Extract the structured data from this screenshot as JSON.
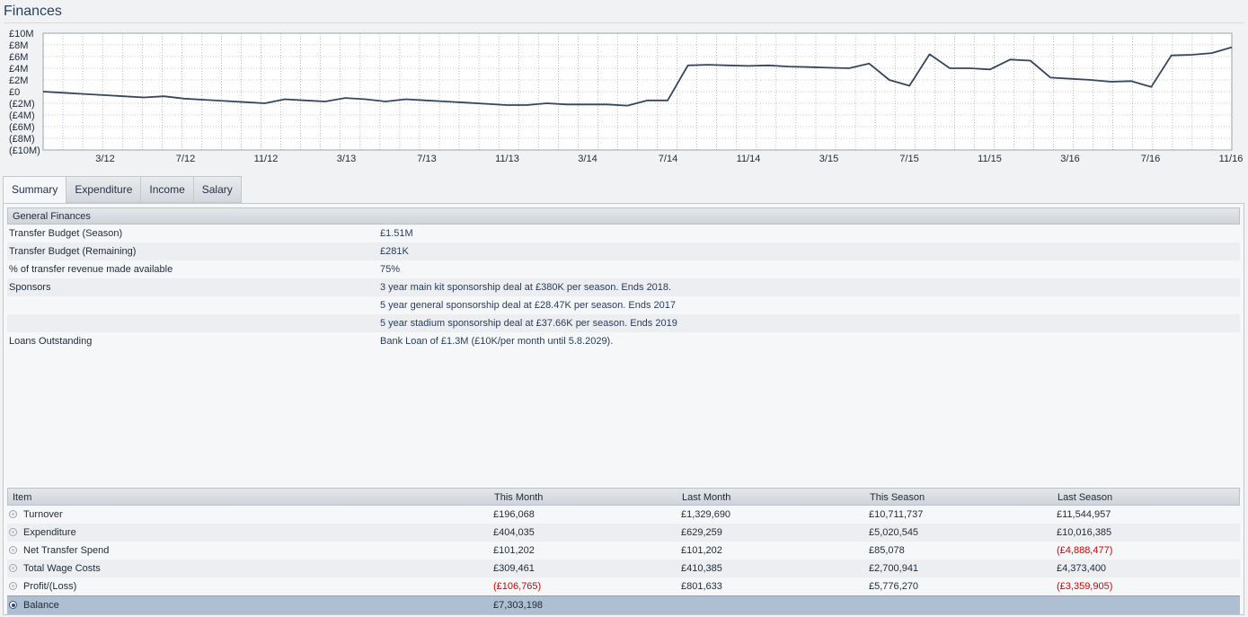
{
  "page": {
    "title": "Finances"
  },
  "chart_data": {
    "type": "line",
    "title": "",
    "xlabel": "",
    "ylabel": "",
    "y_tick_labels": [
      "£10M",
      "£8M",
      "£6M",
      "£4M",
      "£2M",
      "£0",
      "(£2M)",
      "(£4M)",
      "(£6M)",
      "(£8M)",
      "(£10M)"
    ],
    "ylim": [
      -10,
      10
    ],
    "x_tick_labels": [
      "3/12",
      "7/12",
      "11/12",
      "3/13",
      "7/13",
      "11/13",
      "3/14",
      "7/14",
      "11/14",
      "3/15",
      "7/15",
      "11/15",
      "3/16",
      "7/16",
      "11/16"
    ],
    "grid": true,
    "series": [
      {
        "values": [
          0,
          -0.2,
          -0.4,
          -0.6,
          -0.8,
          -1.0,
          -0.8,
          -1.2,
          -1.4,
          -1.6,
          -1.8,
          -2.0,
          -1.3,
          -1.5,
          -1.7,
          -1.1,
          -1.3,
          -1.7,
          -1.3,
          -1.5,
          -1.7,
          -1.9,
          -2.1,
          -2.3,
          -2.3,
          -2.0,
          -2.2,
          -2.2,
          -2.2,
          -2.4,
          -1.5,
          -1.5,
          4.5,
          4.6,
          4.5,
          4.4,
          4.5,
          4.3,
          4.2,
          4.1,
          4.0,
          4.8,
          2.0,
          1.0,
          6.4,
          4.0,
          4.0,
          3.8,
          5.5,
          5.3,
          2.4,
          2.2,
          2.0,
          1.7,
          1.8,
          0.8,
          6.2,
          6.3,
          6.6,
          7.6
        ]
      }
    ]
  },
  "tabs": [
    {
      "label": "Summary",
      "active": true
    },
    {
      "label": "Expenditure",
      "active": false
    },
    {
      "label": "Income",
      "active": false
    },
    {
      "label": "Salary",
      "active": false
    }
  ],
  "general": {
    "header": "General Finances",
    "rows": [
      {
        "label": "Transfer Budget (Season)",
        "value": "£1.51M"
      },
      {
        "label": "Transfer Budget (Remaining)",
        "value": "£281K"
      },
      {
        "label": "% of transfer revenue made available",
        "value": "75%"
      },
      {
        "label": "Sponsors",
        "value": "3 year main kit sponsorship deal at £380K per season. Ends 2018."
      },
      {
        "label": "",
        "value": "5 year general sponsorship deal at £28.47K per season. Ends 2017"
      },
      {
        "label": "",
        "value": "5 year stadium sponsorship deal at £37.66K per season. Ends 2019"
      },
      {
        "label": "Loans Outstanding",
        "value": "Bank Loan of £1.3M (£10K/per month until 5.8.2029)."
      }
    ]
  },
  "table": {
    "columns": [
      "Item",
      "This Month",
      "Last Month",
      "This Season",
      "Last Season"
    ],
    "rows": [
      {
        "item": "Turnover",
        "this_month": "£196,068",
        "last_month": "£1,329,690",
        "this_season": "£10,711,737",
        "last_season": "£11,544,957"
      },
      {
        "item": "Expenditure",
        "this_month": "£404,035",
        "last_month": "£629,259",
        "this_season": "£5,020,545",
        "last_season": "£10,016,385"
      },
      {
        "item": "Net Transfer Spend",
        "this_month": "£101,202",
        "last_month": "£101,202",
        "this_season": "£85,078",
        "last_season": "(£4,888,477)"
      },
      {
        "item": "Total Wage Costs",
        "this_month": "£309,461",
        "last_month": "£410,385",
        "this_season": "£2,700,941",
        "last_season": "£4,373,400"
      },
      {
        "item": "Profit/(Loss)",
        "this_month": "(£106,765)",
        "last_month": "£801,633",
        "this_season": "£5,776,270",
        "last_season": "(£3,359,905)"
      },
      {
        "item": "Balance",
        "this_month": "£7,303,198",
        "last_month": "",
        "this_season": "",
        "last_season": ""
      }
    ],
    "selected_row": 5
  },
  "colors": {
    "line": "#34465f",
    "negative": "#d40000",
    "selected_row": "#aebfd2"
  }
}
